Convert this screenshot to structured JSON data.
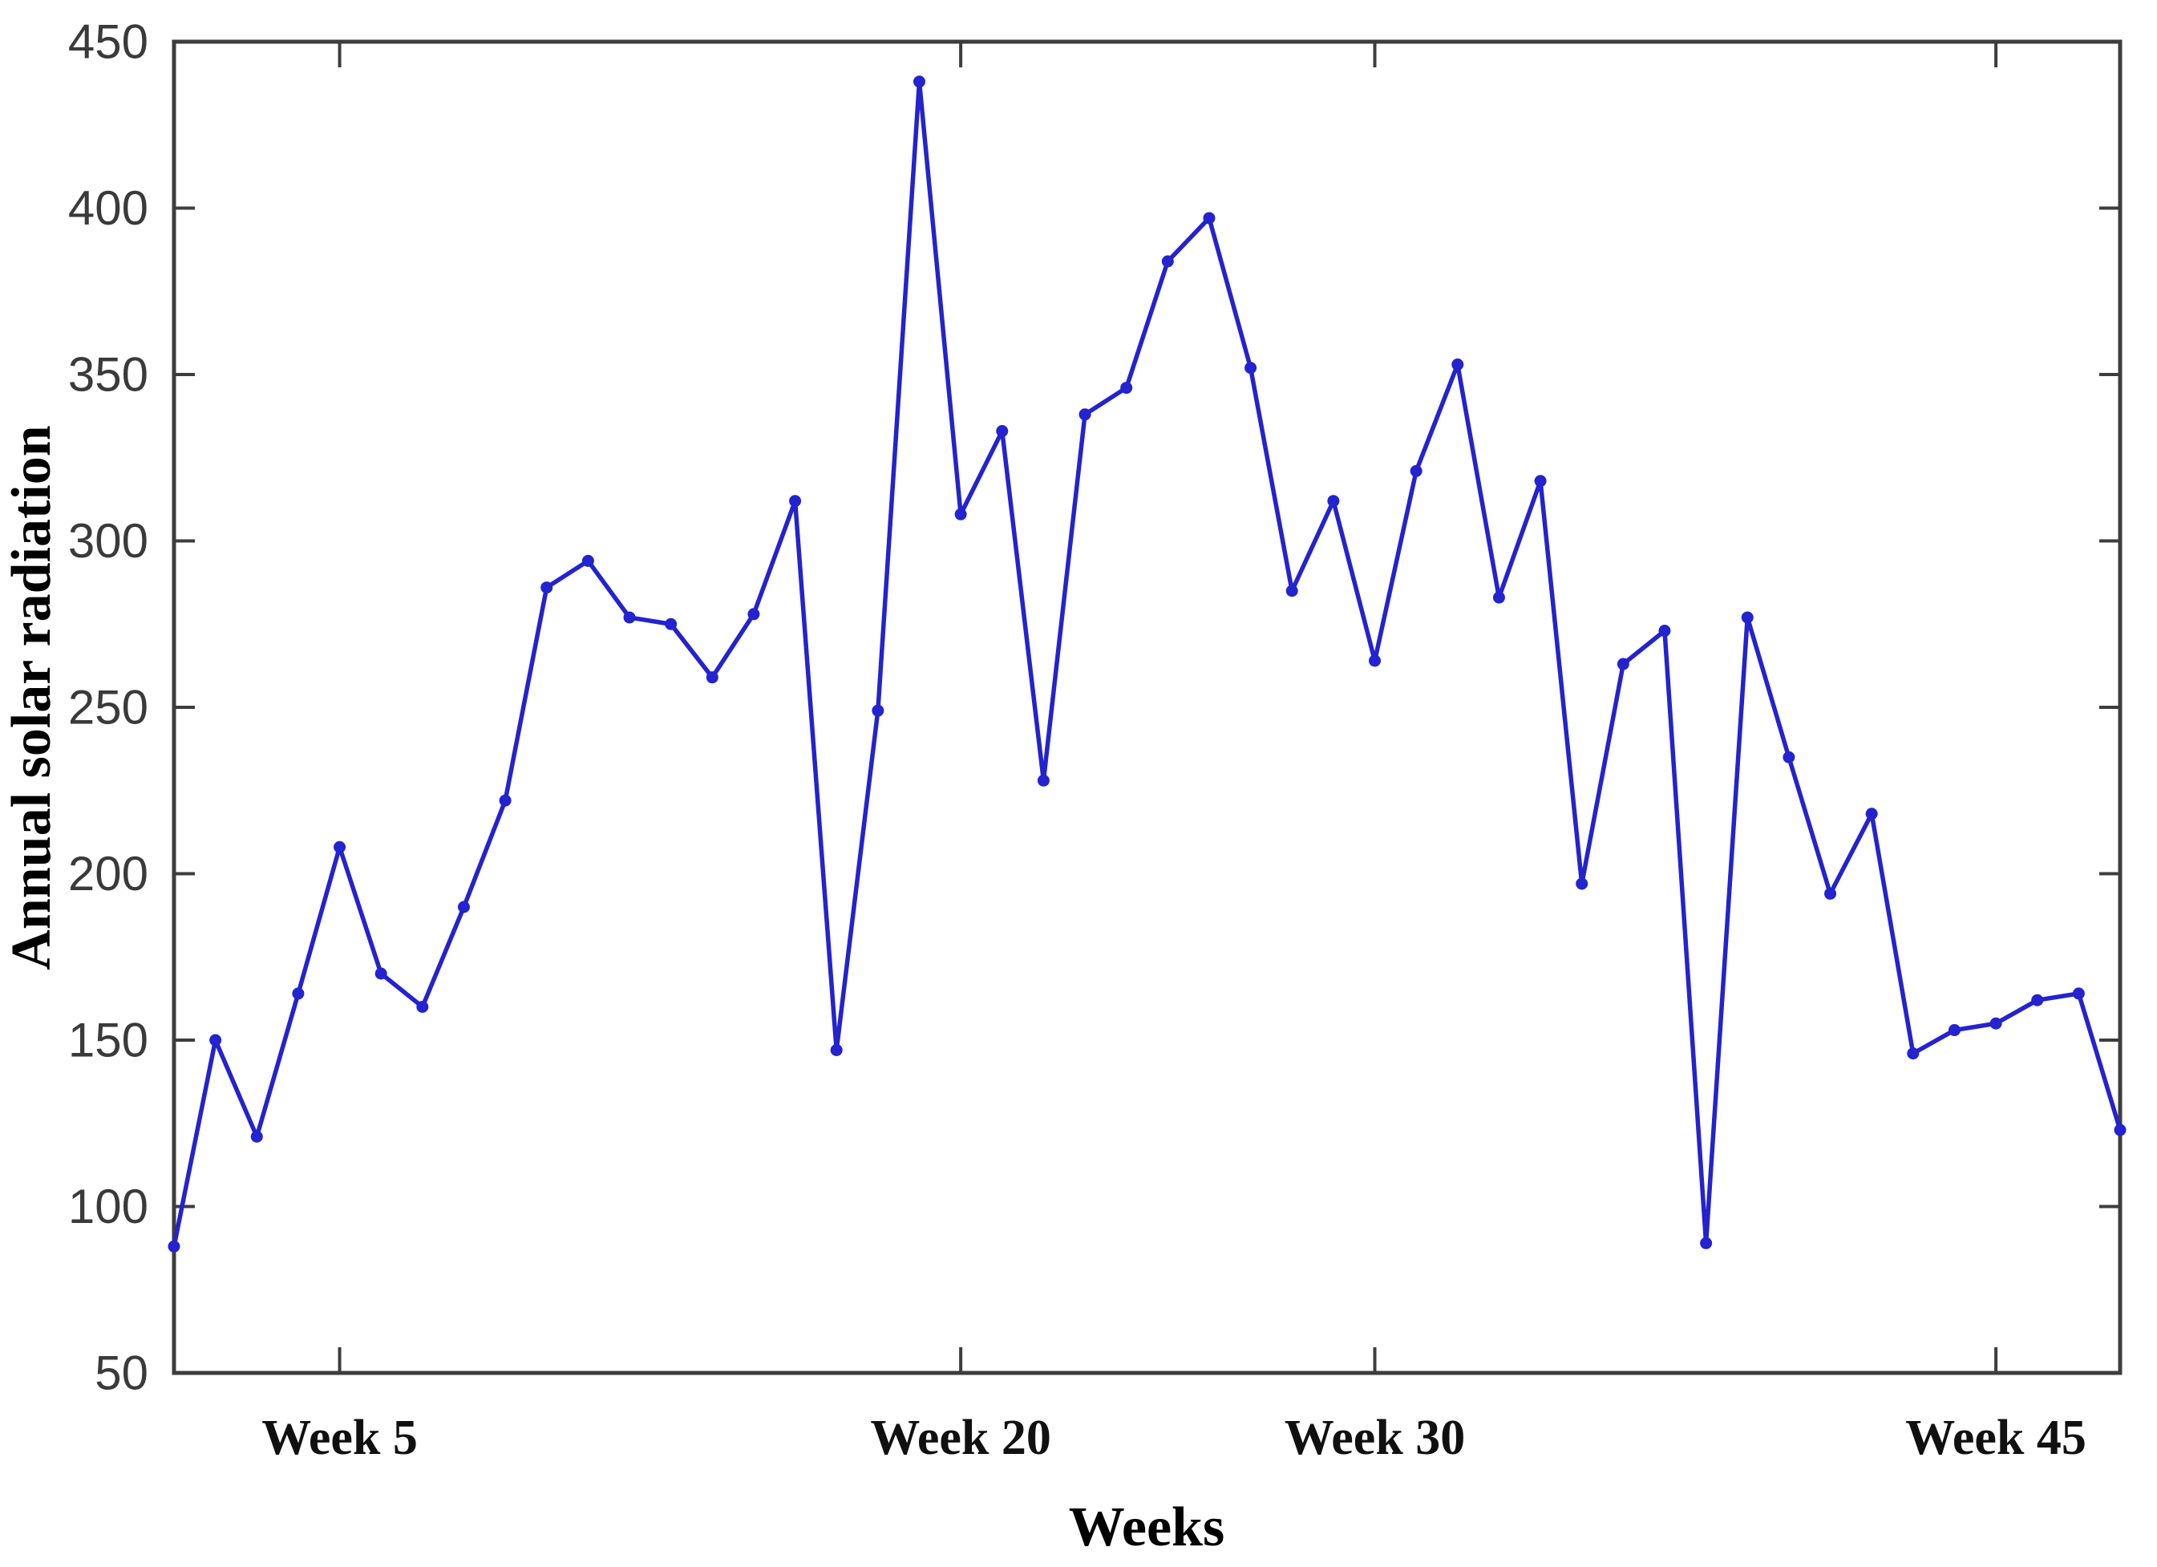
{
  "chart_data": {
    "type": "line",
    "title": "",
    "xlabel": "Weeks",
    "ylabel": "Annual solar radiation",
    "xlim": [
      1,
      48
    ],
    "ylim": [
      50,
      450
    ],
    "grid": false,
    "legend": null,
    "line_color": "#2323cf",
    "axis_color": "#3d3d3d",
    "ytick_label_color": "#3a3a3a",
    "xtick_label_color": "#101010",
    "marker": "dot",
    "yticks": [
      50,
      100,
      150,
      200,
      250,
      300,
      350,
      400,
      450
    ],
    "xticks": [
      {
        "week": 5,
        "label": "Week 5"
      },
      {
        "week": 20,
        "label": "Week 20"
      },
      {
        "week": 30,
        "label": "Week 30"
      },
      {
        "week": 45,
        "label": "Week 45"
      }
    ],
    "x": [
      1,
      2,
      3,
      4,
      5,
      6,
      7,
      8,
      9,
      10,
      11,
      12,
      13,
      14,
      15,
      16,
      17,
      18,
      19,
      20,
      21,
      22,
      23,
      24,
      25,
      26,
      27,
      28,
      29,
      30,
      31,
      32,
      33,
      34,
      35,
      36,
      37,
      38,
      39,
      40,
      41,
      42,
      43,
      44,
      45,
      46,
      47,
      48
    ],
    "values": [
      88,
      150,
      121,
      164,
      208,
      170,
      160,
      190,
      222,
      286,
      294,
      277,
      275,
      259,
      278,
      312,
      147,
      249,
      438,
      308,
      333,
      228,
      338,
      346,
      384,
      397,
      352,
      285,
      312,
      264,
      321,
      353,
      283,
      318,
      197,
      263,
      273,
      89,
      277,
      235,
      194,
      218,
      146,
      153,
      155,
      162,
      164,
      123
    ]
  }
}
